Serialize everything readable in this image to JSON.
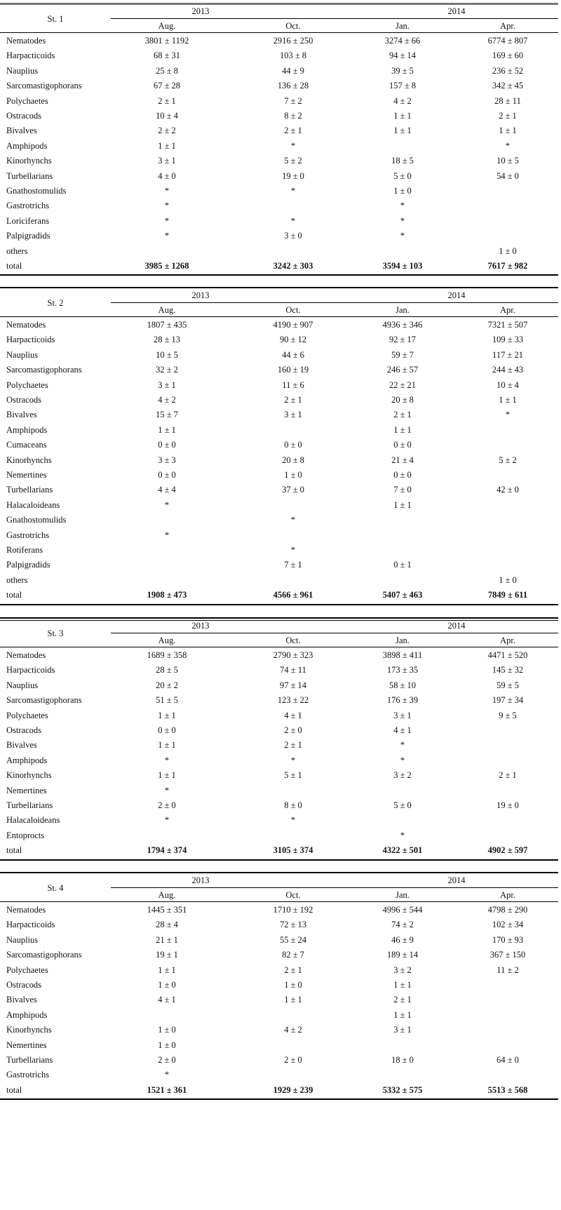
{
  "years": [
    "2013",
    "2014"
  ],
  "months": [
    "Aug.",
    "Oct.",
    "Jan.",
    "Apr."
  ],
  "stations": [
    {
      "name": "St. 1",
      "rows": [
        {
          "taxon": "Nematodes",
          "values": [
            "3801 ± 1192",
            "2916 ± 250",
            "3274 ± 66",
            "6774 ± 807"
          ]
        },
        {
          "taxon": "Harpacticoids",
          "values": [
            "68 ± 31",
            "103 ± 8",
            "94 ± 14",
            "169 ± 60"
          ]
        },
        {
          "taxon": "Nauplius",
          "values": [
            "25 ± 8",
            "44 ± 9",
            "39 ± 5",
            "236 ± 52"
          ]
        },
        {
          "taxon": "Sarcomastigophorans",
          "values": [
            "67 ± 28",
            "136 ± 28",
            "157 ± 8",
            "342 ± 45"
          ]
        },
        {
          "taxon": "Polychaetes",
          "values": [
            "2 ± 1",
            "7 ± 2",
            "4 ± 2",
            "28 ± 11"
          ]
        },
        {
          "taxon": "Ostracods",
          "values": [
            "10 ± 4",
            "8 ± 2",
            "1 ± 1",
            "2 ± 1"
          ]
        },
        {
          "taxon": "Bivalves",
          "values": [
            "2 ± 2",
            "2 ± 1",
            "1 ± 1",
            "1 ± 1"
          ]
        },
        {
          "taxon": "Amphipods",
          "values": [
            "1 ± 1",
            "*",
            "",
            "*"
          ]
        },
        {
          "taxon": "Kinorhynchs",
          "values": [
            "3 ± 1",
            "5 ± 2",
            "18 ± 5",
            "10 ± 5"
          ]
        },
        {
          "taxon": "Turbellarians",
          "values": [
            "4 ± 0",
            "19 ± 0",
            "5 ± 0",
            "54 ± 0"
          ]
        },
        {
          "taxon": "Gnathostomulids",
          "values": [
            "*",
            "*",
            "1 ± 0",
            ""
          ]
        },
        {
          "taxon": "Gastrotrichs",
          "values": [
            "*",
            "",
            "*",
            ""
          ]
        },
        {
          "taxon": "Loriciferans",
          "values": [
            "*",
            "*",
            "*",
            ""
          ]
        },
        {
          "taxon": "Palpigradids",
          "values": [
            "*",
            "3 ± 0",
            "*",
            ""
          ]
        },
        {
          "taxon": "others",
          "values": [
            "",
            "",
            "",
            "1 ± 0"
          ]
        }
      ],
      "total": {
        "label": "total",
        "values": [
          "3985 ± 1268",
          "3242 ± 303",
          "3594 ± 103",
          "7617 ± 982"
        ]
      }
    },
    {
      "name": "St. 2",
      "rows": [
        {
          "taxon": "Nematodes",
          "values": [
            "1807 ± 435",
            "4190 ± 907",
            "4936 ± 346",
            "7321 ± 507"
          ]
        },
        {
          "taxon": "Harpacticoids",
          "values": [
            "28 ± 13",
            "90 ± 12",
            "92 ± 17",
            "109 ± 33"
          ]
        },
        {
          "taxon": "Nauplius",
          "values": [
            "10 ± 5",
            "44 ± 6",
            "59 ± 7",
            "117 ± 21"
          ]
        },
        {
          "taxon": "Sarcomastigophorans",
          "values": [
            "32 ± 2",
            "160 ± 19",
            "246 ± 57",
            "244 ± 43"
          ]
        },
        {
          "taxon": "Polychaetes",
          "values": [
            "3 ± 1",
            "11 ± 6",
            "22 ± 21",
            "10 ± 4"
          ]
        },
        {
          "taxon": "Ostracods",
          "values": [
            "4 ± 2",
            "2 ± 1",
            "20 ± 8",
            "1 ± 1"
          ]
        },
        {
          "taxon": "Bivalves",
          "values": [
            "15 ± 7",
            "3 ± 1",
            "2 ± 1",
            "*"
          ]
        },
        {
          "taxon": "Amphipods",
          "values": [
            "1 ± 1",
            "",
            "1 ± 1",
            ""
          ]
        },
        {
          "taxon": "Cumaceans",
          "values": [
            "0 ± 0",
            "0 ± 0",
            "0 ± 0",
            ""
          ]
        },
        {
          "taxon": "Kinorhynchs",
          "values": [
            "3 ± 3",
            "20 ± 8",
            "21 ± 4",
            "5 ± 2"
          ]
        },
        {
          "taxon": "Nemertines",
          "values": [
            "0 ± 0",
            "1 ± 0",
            "0 ± 0",
            ""
          ]
        },
        {
          "taxon": "Turbellarians",
          "values": [
            "4 ± 4",
            "37 ± 0",
            "7 ± 0",
            "42 ± 0"
          ]
        },
        {
          "taxon": "Halacaloideans",
          "values": [
            "*",
            "",
            "1 ± 1",
            ""
          ]
        },
        {
          "taxon": "Gnathostomulids",
          "values": [
            "",
            "*",
            "",
            ""
          ]
        },
        {
          "taxon": "Gastrotrichs",
          "values": [
            "*",
            "",
            "",
            ""
          ]
        },
        {
          "taxon": "Rotiferans",
          "values": [
            "",
            "*",
            "",
            ""
          ]
        },
        {
          "taxon": "Palpigradids",
          "values": [
            "",
            "7 ± 1",
            "0 ± 1",
            ""
          ]
        },
        {
          "taxon": "others",
          "values": [
            "",
            "",
            "",
            "1 ± 0"
          ]
        }
      ],
      "total": {
        "label": "total",
        "values": [
          "1908 ± 473",
          "4566 ± 961",
          "5407 ± 463",
          "7849 ± 611"
        ]
      }
    },
    {
      "name": "St. 3",
      "rows": [
        {
          "taxon": "Nematodes",
          "values": [
            "1689 ± 358",
            "2790 ± 323",
            "3898 ± 411",
            "4471 ± 520"
          ]
        },
        {
          "taxon": "Harpacticoids",
          "values": [
            "28 ± 5",
            "74 ± 11",
            "173 ± 35",
            "145 ± 32"
          ]
        },
        {
          "taxon": "Nauplius",
          "values": [
            "20 ± 2",
            "97 ± 14",
            "58 ± 10",
            "59 ± 5"
          ]
        },
        {
          "taxon": "Sarcomastigophorans",
          "values": [
            "51 ± 5",
            "123 ± 22",
            "176 ± 39",
            "197 ± 34"
          ]
        },
        {
          "taxon": "Polychaetes",
          "values": [
            "1 ± 1",
            "4 ± 1",
            "3 ± 1",
            "9 ± 5"
          ]
        },
        {
          "taxon": "Ostracods",
          "values": [
            "0 ± 0",
            "2 ± 0",
            "4 ± 1",
            ""
          ]
        },
        {
          "taxon": "Bivalves",
          "values": [
            "1 ± 1",
            "2 ± 1",
            "*",
            ""
          ]
        },
        {
          "taxon": "Amphipods",
          "values": [
            "*",
            "*",
            "*",
            ""
          ]
        },
        {
          "taxon": "Kinorhynchs",
          "values": [
            "1 ± 1",
            "5 ± 1",
            "3 ± 2",
            "2 ± 1"
          ]
        },
        {
          "taxon": "Nemertines",
          "values": [
            "*",
            "",
            "",
            ""
          ]
        },
        {
          "taxon": "Turbellarians",
          "values": [
            "2 ± 0",
            "8 ± 0",
            "5 ± 0",
            "19 ± 0"
          ]
        },
        {
          "taxon": "Halacaloideans",
          "values": [
            "*",
            "*",
            "",
            ""
          ]
        },
        {
          "taxon": "Entoprocts",
          "values": [
            "",
            "",
            "*",
            ""
          ]
        }
      ],
      "total": {
        "label": "total",
        "values": [
          "1794 ± 374",
          "3105 ± 374",
          "4322 ± 501",
          "4902 ± 597"
        ]
      }
    },
    {
      "name": "St. 4",
      "rows": [
        {
          "taxon": "Nematodes",
          "values": [
            "1445 ± 351",
            "1710 ± 192",
            "4996 ± 544",
            "4798 ± 290"
          ]
        },
        {
          "taxon": "Harpacticoids",
          "values": [
            "28 ± 4",
            "72 ± 13",
            "74 ± 2",
            "102 ± 34"
          ]
        },
        {
          "taxon": "Nauplius",
          "values": [
            "21 ± 1",
            "55 ± 24",
            "46 ± 9",
            "170 ± 93"
          ]
        },
        {
          "taxon": "Sarcomastigophorans",
          "values": [
            "19 ± 1",
            "82 ± 7",
            "189 ± 14",
            "367 ± 150"
          ]
        },
        {
          "taxon": "Polychaetes",
          "values": [
            "1 ± 1",
            "2 ± 1",
            "3 ± 2",
            "11 ± 2"
          ]
        },
        {
          "taxon": "Ostracods",
          "values": [
            "1 ± 0",
            "1 ± 0",
            "1 ± 1",
            ""
          ]
        },
        {
          "taxon": "Bivalves",
          "values": [
            "4 ± 1",
            "1 ± 1",
            "2 ± 1",
            ""
          ]
        },
        {
          "taxon": "Amphipods",
          "values": [
            "",
            "",
            "1 ± 1",
            ""
          ]
        },
        {
          "taxon": "Kinorhynchs",
          "values": [
            "1 ± 0",
            "4 ± 2",
            "3 ± 1",
            ""
          ]
        },
        {
          "taxon": "Nemertines",
          "values": [
            "1 ± 0",
            "",
            "",
            ""
          ]
        },
        {
          "taxon": "Turbellarians",
          "values": [
            "2 ± 0",
            "2 ± 0",
            "18 ± 0",
            "64 ± 0"
          ]
        },
        {
          "taxon": "Gastrotrichs",
          "values": [
            "*",
            "",
            "",
            ""
          ]
        }
      ],
      "total": {
        "label": "total",
        "values": [
          "1521 ± 361",
          "1929 ± 239",
          "5332 ± 575",
          "5513 ± 568"
        ]
      }
    }
  ]
}
